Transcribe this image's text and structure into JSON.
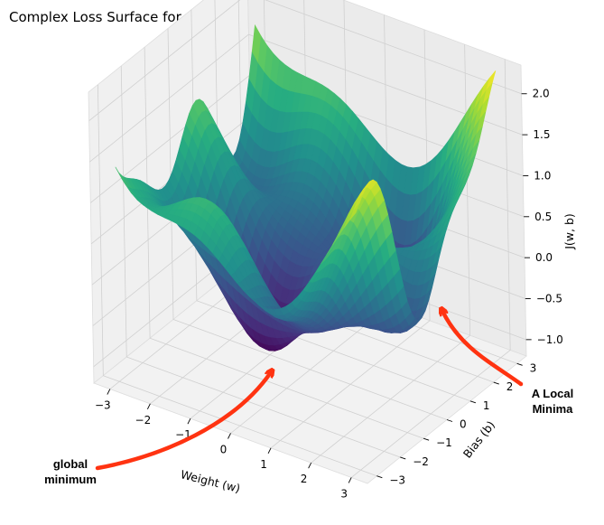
{
  "chart_data": {
    "type": "surface3d",
    "title": "Complex Loss Surface for Cost Function J(w, b)",
    "xlabel": "Weight (w)",
    "ylabel": "Bias (b)",
    "zlabel": "J(w, b)",
    "xlim": [
      -3.4,
      3.4
    ],
    "ylim": [
      -3.4,
      3.4
    ],
    "zlim": [
      -1.2,
      2.35
    ],
    "x_ticks": [
      "−3",
      "−2",
      "−1",
      "0",
      "1",
      "2",
      "3"
    ],
    "y_ticks": [
      "−3",
      "−2",
      "−1",
      "0",
      "1",
      "2",
      "3"
    ],
    "z_ticks": [
      "−1.0",
      "−0.5",
      "0.0",
      "0.5",
      "1.0",
      "1.5",
      "2.0"
    ],
    "colormap": "viridis",
    "grid": true,
    "surface_range": {
      "w": [
        -3,
        3
      ],
      "b": [
        -3,
        3
      ],
      "J_min": -1.0,
      "J_max": 2.3
    },
    "annotations": [
      {
        "label": "global\nminimum",
        "color": "#ff3311"
      },
      {
        "label": "A Local\nMinima",
        "color": "#ff3311"
      }
    ]
  }
}
